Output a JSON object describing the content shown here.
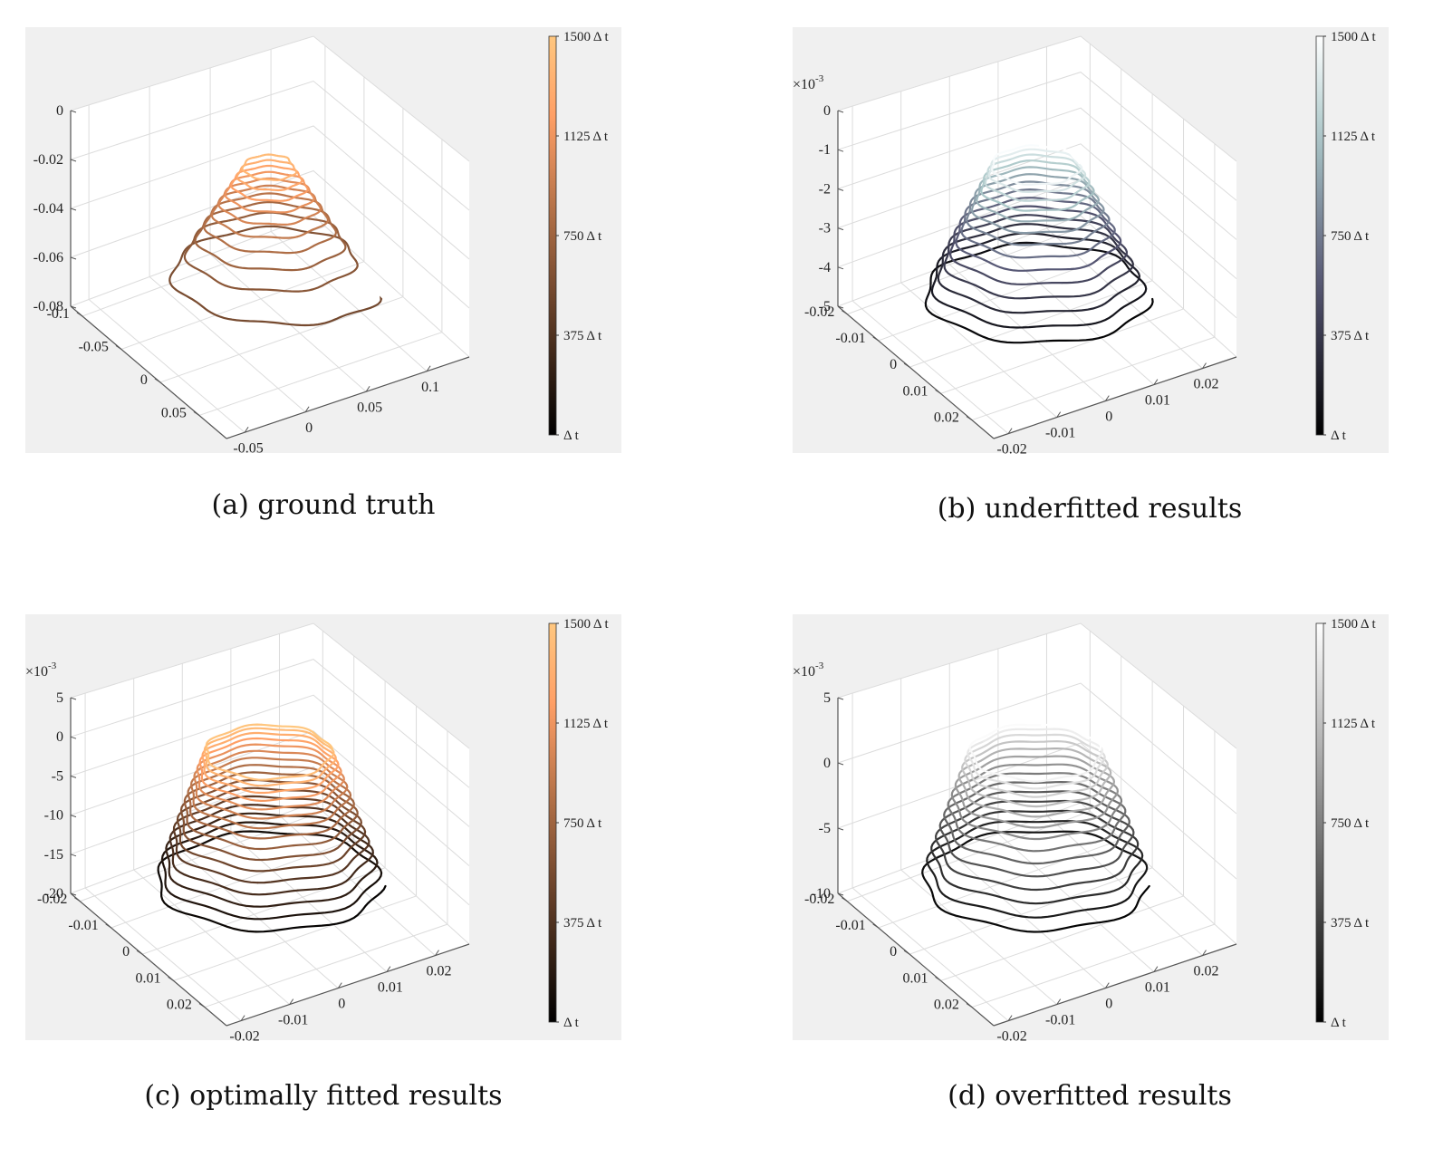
{
  "chart_data": [
    {
      "type": "line3d",
      "caption": "(a) ground truth",
      "z_exponent": "",
      "colormap": "copper",
      "z_ticks": [
        "0",
        "-0.02",
        "-0.04",
        "-0.06",
        "-0.08"
      ],
      "left_ticks": [
        "-0.1",
        "-0.05",
        "0",
        "0.05"
      ],
      "right_ticks": [
        "-0.05",
        "0",
        "0.05",
        "0.1"
      ],
      "colorbar_ticks": [
        "1500 Δ t",
        "1125 Δ t",
        "750 Δ t",
        "375 Δ t",
        "Δ t"
      ],
      "spiral": {
        "bottom_radius": 0.11,
        "top_radius": 0.022,
        "loops": 10
      }
    },
    {
      "type": "line3d",
      "caption": "(b) underfitted results",
      "z_exponent": "×10",
      "z_exponent_power": "-3",
      "colormap": "bone",
      "z_ticks": [
        "0",
        "-1",
        "-2",
        "-3",
        "-4",
        "-5"
      ],
      "left_ticks": [
        "-0.02",
        "-0.01",
        "0",
        "0.01",
        "0.02"
      ],
      "right_ticks": [
        "-0.02",
        "-0.01",
        "0",
        "0.01",
        "0.02"
      ],
      "colorbar_ticks": [
        "1500 Δ t",
        "1125 Δ t",
        "750 Δ t",
        "375 Δ t",
        "Δ t"
      ],
      "spiral": {
        "bottom_radius": 0.016,
        "top_radius": 0.006,
        "loops": 14
      }
    },
    {
      "type": "line3d",
      "caption": "(c) optimally fitted results",
      "z_exponent": "×10",
      "z_exponent_power": "-3",
      "colormap": "copper",
      "z_ticks": [
        "5",
        "0",
        "-5",
        "-10",
        "-15",
        "-20"
      ],
      "left_ticks": [
        "-0.02",
        "-0.01",
        "0",
        "0.01",
        "0.02"
      ],
      "right_ticks": [
        "-0.02",
        "-0.01",
        "0",
        "0.01",
        "0.02"
      ],
      "colorbar_ticks": [
        "1500 Δ t",
        "1125 Δ t",
        "750 Δ t",
        "375 Δ t",
        "Δ t"
      ],
      "spiral": {
        "bottom_radius": 0.022,
        "top_radius": 0.012,
        "loops": 16
      }
    },
    {
      "type": "line3d",
      "caption": "(d) overfitted results",
      "z_exponent": "×10",
      "z_exponent_power": "-3",
      "colormap": "gray",
      "z_ticks": [
        "5",
        "0",
        "-5",
        "-10"
      ],
      "left_ticks": [
        "-0.02",
        "-0.01",
        "0",
        "0.01",
        "0.02"
      ],
      "right_ticks": [
        "-0.02",
        "-0.01",
        "0",
        "0.01",
        "0.02"
      ],
      "colorbar_ticks": [
        "1500 Δ t",
        "1125 Δ t",
        "750 Δ t",
        "375 Δ t",
        "Δ t"
      ],
      "spiral": {
        "bottom_radius": 0.016,
        "top_radius": 0.009,
        "loops": 14
      }
    }
  ],
  "colors": {
    "axes_background": "#f0f0f0",
    "grid": "#dcdcdc",
    "axis": "#555555"
  }
}
